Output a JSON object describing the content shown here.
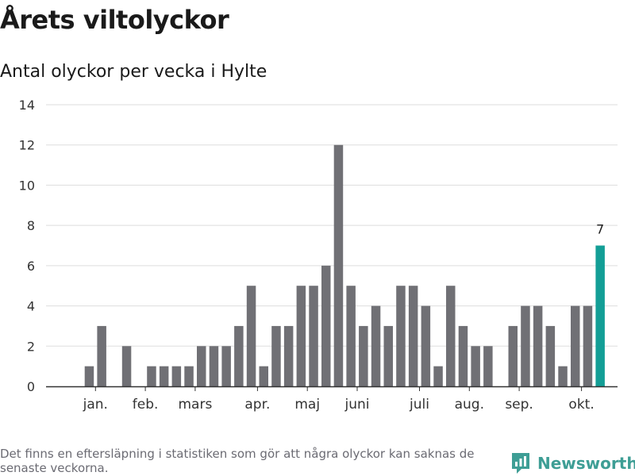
{
  "header": {
    "title": "Årets viltolyckor",
    "subtitle": "Antal olyckor per vecka i Hylte"
  },
  "footer": {
    "note": "Det finns en eftersläpning i statistiken som gör att några olyckor kan saknas de senaste veckorna.",
    "brand": "Newsworthy"
  },
  "colors": {
    "bar": "#707075",
    "highlight": "#139e96",
    "grid": "#dddddd",
    "axis": "#333333",
    "brand": "#3e9e95"
  },
  "chart_data": {
    "type": "bar",
    "title": "Antal olyckor per vecka i Hylte",
    "xlabel": "",
    "ylabel": "",
    "ylim": [
      0,
      14
    ],
    "yticks": [
      0,
      2,
      4,
      6,
      8,
      10,
      12,
      14
    ],
    "grid": true,
    "values": [
      0,
      1,
      3,
      0,
      2,
      0,
      1,
      1,
      1,
      1,
      2,
      2,
      2,
      3,
      5,
      1,
      3,
      3,
      5,
      5,
      6,
      12,
      5,
      3,
      4,
      3,
      5,
      5,
      4,
      1,
      5,
      3,
      2,
      2,
      0,
      3,
      4,
      4,
      3,
      1,
      4,
      4,
      7
    ],
    "month_ticks": [
      {
        "label": "jan.",
        "week_index": 1.5
      },
      {
        "label": "feb.",
        "week_index": 5.5
      },
      {
        "label": "mars",
        "week_index": 9.5
      },
      {
        "label": "apr.",
        "week_index": 14.5
      },
      {
        "label": "maj",
        "week_index": 18.5
      },
      {
        "label": "juni",
        "week_index": 22.5
      },
      {
        "label": "juli",
        "week_index": 27.5
      },
      {
        "label": "aug.",
        "week_index": 31.5
      },
      {
        "label": "sep.",
        "week_index": 35.5
      },
      {
        "label": "okt.",
        "week_index": 40.5
      }
    ],
    "highlight_index": 42,
    "highlight_label": "7"
  }
}
